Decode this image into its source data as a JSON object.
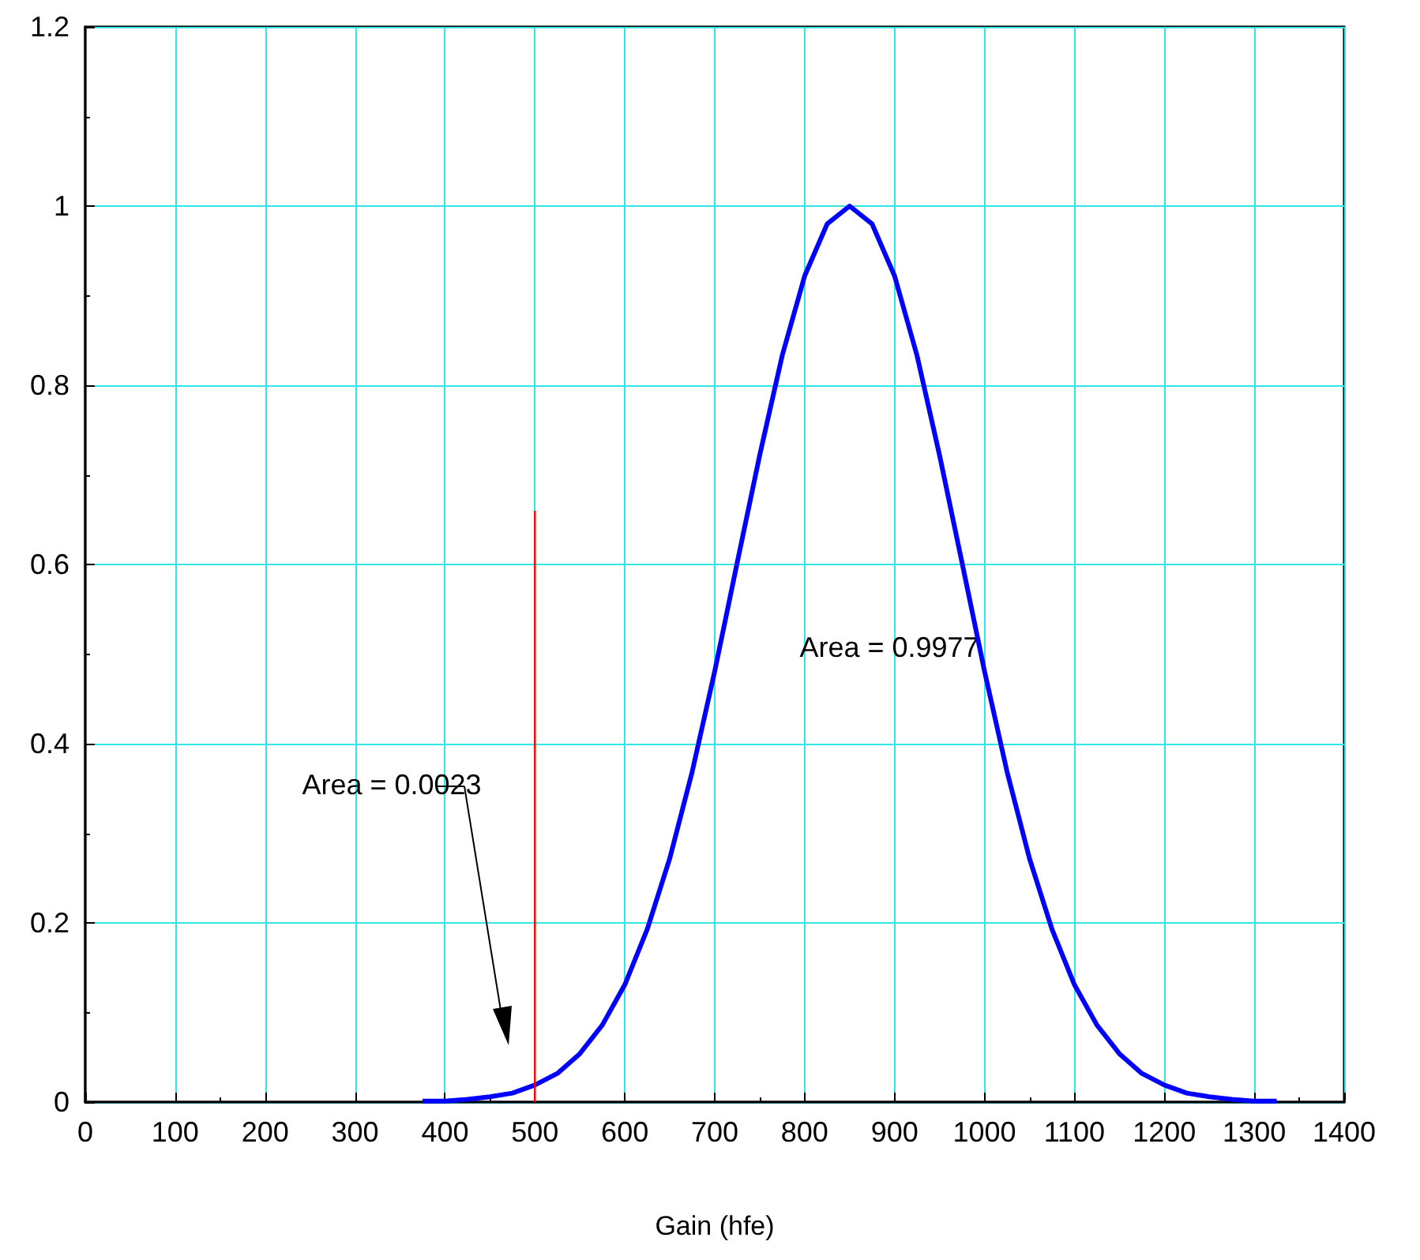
{
  "chart_data": {
    "type": "line",
    "xlabel": "Gain (hfe)",
    "x": [
      375,
      400,
      425,
      450,
      475,
      500,
      525,
      550,
      575,
      600,
      625,
      650,
      675,
      700,
      725,
      750,
      775,
      800,
      825,
      850,
      875,
      900,
      925,
      950,
      975,
      1000,
      1025,
      1050,
      1075,
      1100,
      1125,
      1150,
      1175,
      1200,
      1225,
      1250,
      1275,
      1300,
      1325
    ],
    "series": [
      {
        "color": "#0000ff",
        "values": [
          0.001,
          0.001,
          0.003,
          0.006,
          0.01,
          0.019,
          0.032,
          0.054,
          0.086,
          0.131,
          0.193,
          0.272,
          0.369,
          0.481,
          0.602,
          0.722,
          0.833,
          0.922,
          0.98,
          1,
          0.98,
          0.922,
          0.833,
          0.722,
          0.602,
          0.481,
          0.369,
          0.272,
          0.193,
          0.131,
          0.086,
          0.054,
          0.032,
          0.019,
          0.01,
          0.006,
          0.003,
          0.001,
          0.001
        ]
      },
      {
        "color": "#ff0000",
        "x": [
          500,
          500
        ],
        "values": [
          0,
          0.66
        ]
      }
    ],
    "xlim": [
      0,
      1400
    ],
    "xticks": [
      0,
      100,
      200,
      300,
      400,
      500,
      600,
      700,
      800,
      900,
      1000,
      1100,
      1200,
      1300,
      1400
    ],
    "ylim": [
      0,
      1.2
    ],
    "yticks": [
      0,
      0.2,
      0.4,
      0.6,
      0.8,
      1,
      1.2
    ],
    "grid": true,
    "marker": "none",
    "line_style": "solid",
    "annotations": [
      "Area = 0.0023",
      "Area = 0.9977"
    ]
  }
}
